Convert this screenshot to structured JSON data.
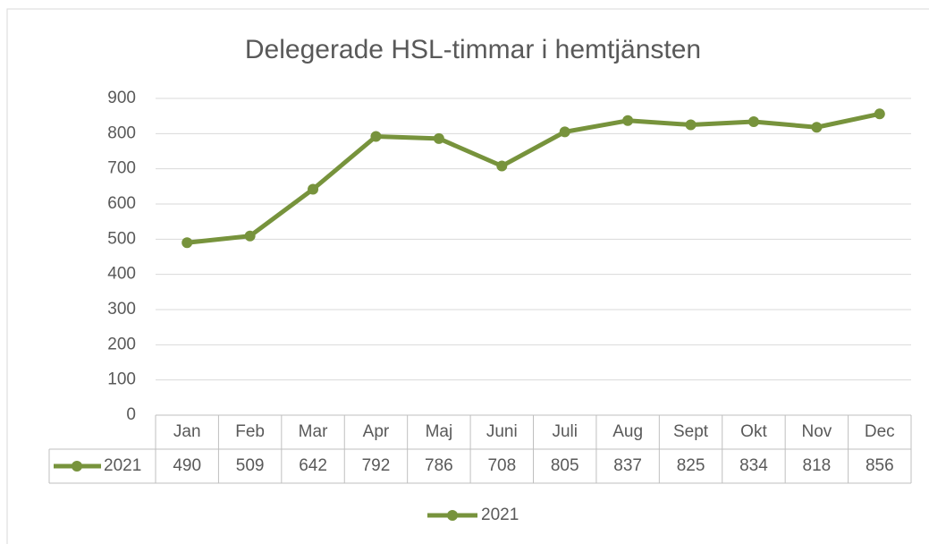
{
  "chart_data": {
    "type": "line",
    "title": "Delegerade HSL-timmar i hemtjänsten",
    "categories": [
      "Jan",
      "Feb",
      "Mar",
      "Apr",
      "Maj",
      "Juni",
      "Juli",
      "Aug",
      "Sept",
      "Okt",
      "Nov",
      "Dec"
    ],
    "series": [
      {
        "name": "2021",
        "color": "#77933c",
        "values": [
          490,
          509,
          642,
          792,
          786,
          708,
          805,
          837,
          825,
          834,
          818,
          856
        ]
      }
    ],
    "ylim": [
      0,
      900
    ],
    "yticks": [
      0,
      100,
      200,
      300,
      400,
      500,
      600,
      700,
      800,
      900
    ],
    "grid": true,
    "legend": "bottom",
    "data_table": true
  }
}
